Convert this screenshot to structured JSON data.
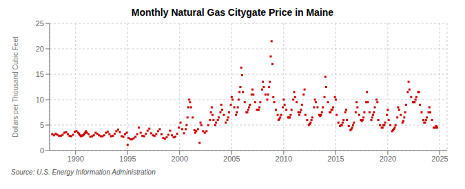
{
  "chart_data": {
    "type": "scatter",
    "title": "Monthly Natural Gas Citygate Price in Maine",
    "ylabel": "Dollars per Thousand Cubic Feet",
    "source": "Source: U.S. Energy Information Administration",
    "color": "#cc0000",
    "marker": "square",
    "grid": true,
    "xlim": [
      1987.5,
      2025.7
    ],
    "ylim": [
      0,
      25
    ],
    "xticks": [
      1990,
      1995,
      2000,
      2005,
      2010,
      2015,
      2020,
      2025
    ],
    "yticks": [
      0,
      5,
      10,
      15,
      20,
      25
    ],
    "x": [
      1987.75,
      1987.917,
      1988.083,
      1988.25,
      1988.417,
      1988.583,
      1988.75,
      1988.917,
      1989.083,
      1989.25,
      1989.417,
      1989.583,
      1989.75,
      1989.917,
      1990.083,
      1990.25,
      1990.333,
      1990.417,
      1990.5,
      1990.583,
      1990.667,
      1990.75,
      1990.833,
      1990.917,
      1991.0,
      1991.083,
      1991.25,
      1991.417,
      1991.583,
      1991.75,
      1991.917,
      1992.083,
      1992.25,
      1992.417,
      1992.583,
      1992.75,
      1992.917,
      1993.083,
      1993.25,
      1993.417,
      1993.583,
      1993.75,
      1993.917,
      1994.083,
      1994.25,
      1994.417,
      1994.583,
      1994.75,
      1994.917,
      1995.0,
      1995.083,
      1995.25,
      1995.417,
      1995.583,
      1995.75,
      1995.917,
      1996.083,
      1996.25,
      1996.417,
      1996.583,
      1996.75,
      1996.917,
      1997.083,
      1997.25,
      1997.417,
      1997.583,
      1997.75,
      1997.917,
      1998.083,
      1998.25,
      1998.417,
      1998.583,
      1998.75,
      1998.917,
      1999.083,
      1999.25,
      1999.417,
      1999.583,
      1999.75,
      1999.917,
      2000.083,
      2000.25,
      2000.417,
      2000.583,
      2000.667,
      2000.75,
      2000.833,
      2000.917,
      2001.0,
      2001.083,
      2001.25,
      2001.417,
      2001.5,
      2001.583,
      2001.75,
      2001.917,
      2002.0,
      2002.083,
      2002.25,
      2002.417,
      2002.583,
      2002.75,
      2002.917,
      2003.0,
      2003.083,
      2003.167,
      2003.25,
      2003.417,
      2003.5,
      2003.667,
      2003.75,
      2003.917,
      2004.0,
      2004.083,
      2004.25,
      2004.417,
      2004.583,
      2004.667,
      2004.75,
      2004.917,
      2005.0,
      2005.083,
      2005.25,
      2005.417,
      2005.5,
      2005.583,
      2005.667,
      2005.75,
      2005.833,
      2005.917,
      2006.0,
      2006.083,
      2006.25,
      2006.417,
      2006.5,
      2006.583,
      2006.667,
      2006.75,
      2006.917,
      2007.0,
      2007.083,
      2007.25,
      2007.417,
      2007.583,
      2007.667,
      2007.75,
      2007.917,
      2008.0,
      2008.083,
      2008.25,
      2008.417,
      2008.5,
      2008.583,
      2008.667,
      2008.75,
      2008.833,
      2008.917,
      2009.0,
      2009.083,
      2009.25,
      2009.417,
      2009.5,
      2009.583,
      2009.667,
      2009.75,
      2009.917,
      2010.0,
      2010.083,
      2010.25,
      2010.417,
      2010.5,
      2010.583,
      2010.667,
      2010.75,
      2010.917,
      2011.0,
      2011.083,
      2011.25,
      2011.417,
      2011.5,
      2011.583,
      2011.667,
      2011.75,
      2011.917,
      2012.0,
      2012.083,
      2012.25,
      2012.417,
      2012.5,
      2012.583,
      2012.667,
      2012.75,
      2012.917,
      2013.0,
      2013.083,
      2013.25,
      2013.417,
      2013.5,
      2013.583,
      2013.667,
      2013.75,
      2013.917,
      2014.0,
      2014.083,
      2014.25,
      2014.417,
      2014.5,
      2014.583,
      2014.667,
      2014.75,
      2014.917,
      2015.0,
      2015.083,
      2015.25,
      2015.417,
      2015.5,
      2015.583,
      2015.667,
      2015.75,
      2015.917,
      2016.0,
      2016.083,
      2016.25,
      2016.417,
      2016.5,
      2016.583,
      2016.667,
      2016.75,
      2016.917,
      2017.0,
      2017.083,
      2017.25,
      2017.417,
      2017.5,
      2017.583,
      2017.667,
      2017.75,
      2017.917,
      2018.0,
      2018.083,
      2018.25,
      2018.417,
      2018.5,
      2018.583,
      2018.667,
      2018.75,
      2018.917,
      2019.0,
      2019.083,
      2019.25,
      2019.417,
      2019.5,
      2019.583,
      2019.667,
      2019.75,
      2019.917,
      2020.0,
      2020.083,
      2020.25,
      2020.417,
      2020.5,
      2020.583,
      2020.667,
      2020.75,
      2020.917,
      2021.0,
      2021.083,
      2021.25,
      2021.417,
      2021.5,
      2021.583,
      2021.667,
      2021.75,
      2021.917,
      2022.0,
      2022.083,
      2022.25,
      2022.417,
      2022.5,
      2022.583,
      2022.667,
      2022.75,
      2022.917,
      2023.0,
      2023.083,
      2023.25,
      2023.417,
      2023.5,
      2023.583,
      2023.667,
      2023.75,
      2023.917,
      2024.0,
      2024.083,
      2024.25,
      2024.417,
      2024.5,
      2024.583,
      2024.667,
      2024.75
    ],
    "values": [
      3.2,
      3.0,
      3.3,
      3.1,
      2.9,
      2.9,
      3.1,
      3.5,
      3.6,
      3.2,
      2.9,
      2.8,
      3.1,
      3.7,
      3.8,
      3.5,
      3.3,
      3.0,
      2.8,
      2.9,
      3.0,
      3.0,
      3.3,
      3.5,
      3.8,
      3.5,
      3.2,
      2.7,
      2.8,
      3.0,
      3.5,
      3.3,
      3.0,
      2.8,
      2.8,
      3.0,
      3.5,
      3.7,
      3.2,
      2.8,
      2.9,
      3.3,
      3.8,
      4.1,
      3.6,
      2.8,
      2.7,
      3.2,
      3.5,
      1.1,
      2.5,
      2.2,
      2.2,
      2.4,
      2.7,
      3.2,
      4.5,
      3.5,
      2.9,
      2.8,
      3.3,
      3.9,
      4.3,
      3.4,
      3.0,
      2.9,
      3.2,
      3.8,
      4.2,
      3.2,
      2.5,
      2.3,
      2.6,
      3.1,
      3.9,
      3.0,
      2.6,
      2.7,
      3.3,
      4.5,
      5.5,
      4.2,
      3.4,
      4.2,
      5.0,
      6.5,
      8.5,
      10.0,
      9.5,
      8.5,
      6.5,
      4.0,
      3.5,
      3.8,
      4.2,
      1.5,
      5.5,
      5.0,
      3.8,
      3.5,
      3.8,
      5.0,
      6.0,
      7.5,
      8.5,
      7.0,
      6.0,
      5.0,
      5.5,
      6.0,
      6.5,
      7.5,
      9.0,
      8.0,
      7.0,
      5.5,
      6.0,
      6.5,
      7.5,
      9.0,
      10.5,
      10.0,
      8.5,
      7.0,
      7.5,
      8.5,
      10.0,
      11.5,
      12.5,
      16.3,
      14.8,
      11.5,
      9.5,
      7.5,
      7.5,
      8.0,
      8.5,
      9.0,
      11.0,
      12.0,
      11.0,
      9.5,
      8.0,
      8.0,
      8.5,
      9.5,
      12.0,
      13.5,
      12.5,
      11.0,
      10.0,
      11.0,
      12.5,
      13.5,
      18.5,
      21.5,
      17.0,
      10.5,
      9.5,
      8.0,
      7.0,
      6.0,
      6.2,
      6.5,
      7.0,
      8.5,
      10.0,
      9.0,
      8.0,
      6.5,
      6.5,
      6.5,
      7.0,
      8.0,
      10.0,
      11.5,
      10.5,
      9.5,
      7.5,
      7.0,
      7.5,
      8.0,
      9.0,
      11.0,
      12.0,
      7.0,
      6.0,
      5.0,
      5.2,
      5.5,
      6.0,
      6.5,
      8.5,
      10.0,
      9.5,
      8.5,
      7.0,
      6.8,
      7.0,
      7.5,
      8.5,
      10.5,
      14.5,
      12.5,
      9.5,
      7.5,
      7.5,
      8.0,
      8.0,
      8.5,
      10.5,
      10.0,
      7.0,
      5.5,
      4.8,
      5.0,
      5.0,
      5.5,
      6.0,
      7.5,
      8.0,
      6.0,
      4.8,
      4.0,
      4.2,
      4.5,
      5.0,
      5.5,
      7.5,
      9.5,
      8.5,
      7.0,
      6.0,
      5.8,
      6.0,
      6.5,
      7.5,
      9.5,
      11.5,
      9.5,
      7.5,
      6.0,
      6.5,
      7.0,
      7.5,
      8.5,
      10.0,
      9.5,
      6.0,
      5.0,
      4.5,
      4.5,
      5.0,
      5.0,
      5.5,
      7.0,
      8.0,
      6.0,
      5.0,
      3.8,
      4.0,
      4.2,
      4.5,
      5.0,
      6.5,
      8.5,
      8.0,
      7.0,
      5.5,
      5.8,
      6.5,
      7.5,
      9.0,
      11.5,
      13.5,
      12.0,
      10.5,
      9.5,
      9.5,
      9.5,
      10.0,
      10.5,
      11.5,
      11.5,
      9.0,
      7.5,
      6.0,
      5.5,
      5.5,
      6.0,
      6.5,
      7.5,
      8.5,
      7.5,
      6.0,
      4.5,
      4.5,
      4.5,
      4.8,
      4.5
    ]
  }
}
